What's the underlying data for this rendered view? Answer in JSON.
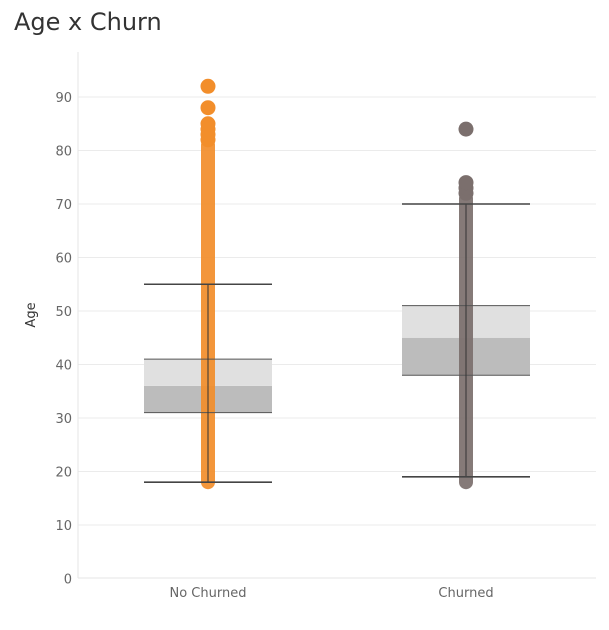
{
  "chart_data": {
    "type": "boxplot",
    "title": "Age x Churn",
    "xlabel": "",
    "ylabel": "Age",
    "ylim": [
      0,
      98
    ],
    "yticks": [
      0,
      10,
      20,
      30,
      40,
      50,
      60,
      70,
      80,
      90
    ],
    "grid": true,
    "categories": [
      "No Churned",
      "Churned"
    ],
    "colors": {
      "No Churned": "#f28e2b",
      "Churned": "#7b6f6d"
    },
    "boxes": [
      {
        "category": "No Churned",
        "whisker_low": 18,
        "q1": 31,
        "median": 36,
        "q3": 41,
        "whisker_high": 55,
        "points_range": [
          18,
          81
        ],
        "outliers": [
          82,
          83,
          84,
          85,
          88,
          92
        ]
      },
      {
        "category": "Churned",
        "whisker_low": 19,
        "q1": 38,
        "median": 45,
        "q3": 51,
        "whisker_high": 70,
        "points_range": [
          18,
          71
        ],
        "outliers": [
          72,
          73,
          74,
          84
        ]
      }
    ]
  }
}
